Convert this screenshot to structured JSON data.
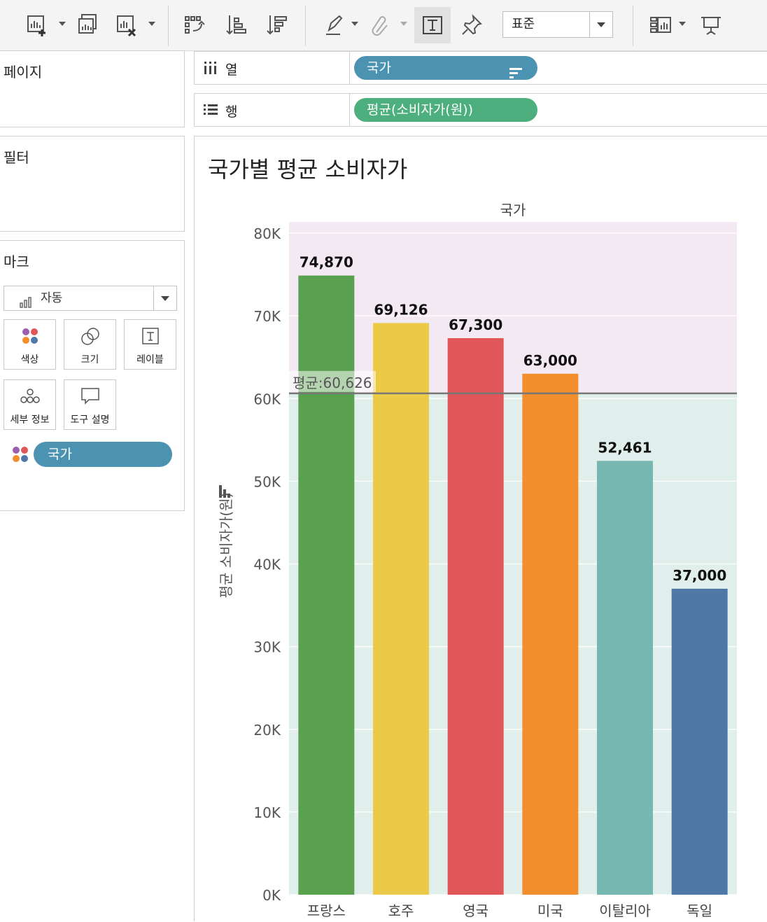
{
  "toolbar": {
    "fit_select_value": "표준",
    "icons": [
      "new-worksheet-icon",
      "duplicate-sheet-icon",
      "clear-sheet-icon",
      "swap-axes-icon",
      "sort-ascending-icon",
      "sort-descending-icon",
      "highlight-icon",
      "group-icon",
      "show-labels-icon",
      "pin-icon",
      "show-me-icon",
      "presentation-icon"
    ]
  },
  "panels": {
    "pages_title": "페이지",
    "filters_title": "필터",
    "marks_title": "마크"
  },
  "marks": {
    "type_value": "자동",
    "cards": {
      "color": "색상",
      "size": "크기",
      "label": "레이블",
      "detail": "세부 정보",
      "tooltip": "도구 설명"
    },
    "color_pill": "국가"
  },
  "shelves": {
    "columns_label": "열",
    "rows_label": "행",
    "columns_pill": "국가",
    "rows_pill": "평균(소비자가(원))"
  },
  "chart": {
    "title": "국가별 평균 소비자가",
    "header": "국가",
    "yaxis_title": "평균 소비자가(원)",
    "average_label": "평균:60,626"
  },
  "chart_data": {
    "type": "bar",
    "title": "국가별 평균 소비자가",
    "xlabel": "국가",
    "ylabel": "평균 소비자가(원)",
    "ylim": [
      0,
      80000
    ],
    "yticks": [
      0,
      10000,
      20000,
      30000,
      40000,
      50000,
      60000,
      70000,
      80000
    ],
    "ytick_labels": [
      "0K",
      "10K",
      "20K",
      "30K",
      "40K",
      "50K",
      "60K",
      "70K",
      "80K"
    ],
    "categories": [
      "프랑스",
      "호주",
      "영국",
      "미국",
      "이탈리아",
      "독일"
    ],
    "values": [
      74870,
      69126,
      67300,
      63000,
      52461,
      37000
    ],
    "value_labels": [
      "74,870",
      "69,126",
      "67,300",
      "63,000",
      "52,461",
      "37,000"
    ],
    "colors": [
      "#59a14f",
      "#edc948",
      "#e15759",
      "#f28e2b",
      "#76b7b2",
      "#4e79a7"
    ],
    "reference_line": {
      "value": 60626,
      "label": "평균:60,626",
      "color": "#777777"
    },
    "bands": {
      "above_color": "#f3e9f3",
      "below_color": "#e1efec"
    },
    "grid": true
  }
}
